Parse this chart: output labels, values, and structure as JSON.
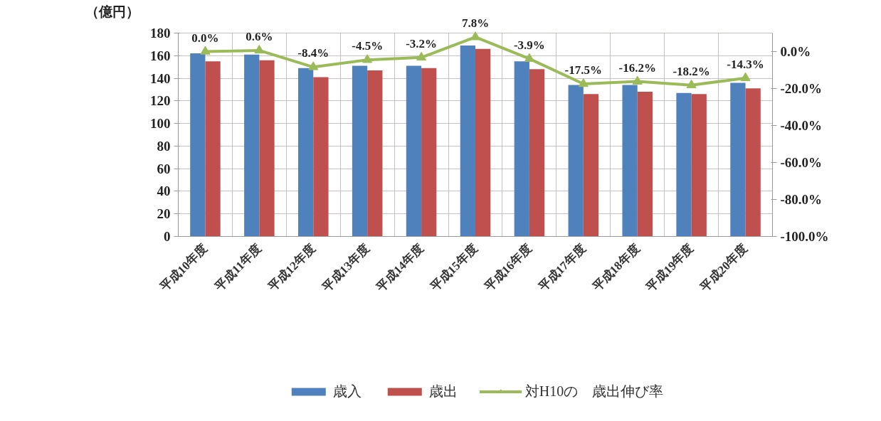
{
  "chart_data": {
    "type": "bar",
    "ylabel": "（億円）",
    "categories": [
      "平成10年度",
      "平成11年度",
      "平成12年度",
      "平成13年度",
      "平成14年度",
      "平成15年度",
      "平成16年度",
      "平成17年度",
      "平成18年度",
      "平成19年度",
      "平成20年度"
    ],
    "ylim": [
      0,
      180
    ],
    "yticks": [
      0,
      20,
      40,
      60,
      80,
      100,
      120,
      140,
      160,
      180
    ],
    "y2lim": [
      -100,
      10
    ],
    "y2ticks": [
      {
        "value": 0,
        "label": "0.0%"
      },
      {
        "value": -20,
        "label": "-20.0%"
      },
      {
        "value": -40,
        "label": "-40.0%"
      },
      {
        "value": -60,
        "label": "-60.0%"
      },
      {
        "value": -80,
        "label": "-80.0%"
      },
      {
        "value": -100,
        "label": "-100.0%"
      }
    ],
    "grid": true,
    "legend": "bottom",
    "series": [
      {
        "name": "歳入",
        "color": "#4f81bd",
        "values": [
          162,
          161,
          149,
          151,
          151,
          169,
          155,
          134,
          134,
          127,
          136
        ]
      },
      {
        "name": "歳出",
        "color": "#c0504d",
        "values": [
          155,
          156,
          141,
          147,
          149,
          166,
          148,
          126,
          128,
          126,
          131
        ]
      },
      {
        "name": "対H10の　歳出伸び率",
        "type": "line",
        "axis": "y2",
        "color": "#9bbb59",
        "marker": "triangle",
        "values": [
          0.0,
          0.6,
          -8.4,
          -4.5,
          -3.2,
          7.8,
          -3.9,
          -17.5,
          -16.2,
          -18.2,
          -14.3
        ],
        "value_labels": [
          "0.0%",
          "0.6%",
          "-8.4%",
          "-4.5%",
          "-3.2%",
          "7.8%",
          "-3.9%",
          "-17.5%",
          "-16.2%",
          "-18.2%",
          "-14.3%"
        ]
      }
    ]
  }
}
